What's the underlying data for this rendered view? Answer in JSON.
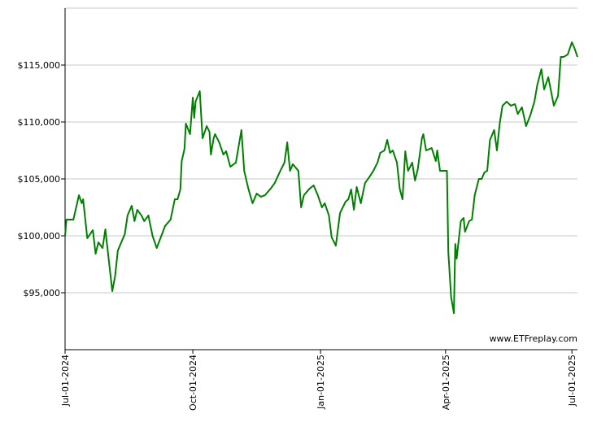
{
  "chart_data": {
    "type": "line",
    "watermark": "www.ETFreplay.com",
    "x": [
      "2024-07-01",
      "2024-07-02",
      "2024-07-07",
      "2024-07-09",
      "2024-07-11",
      "2024-07-13",
      "2024-07-14",
      "2024-07-17",
      "2024-07-21",
      "2024-07-23",
      "2024-07-25",
      "2024-07-28",
      "2024-07-30",
      "2024-08-04",
      "2024-08-06",
      "2024-08-08",
      "2024-08-11",
      "2024-08-13",
      "2024-08-15",
      "2024-08-18",
      "2024-08-20",
      "2024-08-22",
      "2024-08-25",
      "2024-08-27",
      "2024-08-30",
      "2024-09-02",
      "2024-09-05",
      "2024-09-07",
      "2024-09-11",
      "2024-09-15",
      "2024-09-18",
      "2024-09-20",
      "2024-09-22",
      "2024-09-23",
      "2024-09-25",
      "2024-09-26",
      "2024-09-29",
      "2024-10-01",
      "2024-10-02",
      "2024-10-03",
      "2024-10-06",
      "2024-10-08",
      "2024-10-11",
      "2024-10-13",
      "2024-10-14",
      "2024-10-16",
      "2024-10-17",
      "2024-10-20",
      "2024-10-23",
      "2024-10-25",
      "2024-10-28",
      "2024-11-01",
      "2024-11-03",
      "2024-11-05",
      "2024-11-07",
      "2024-11-10",
      "2024-11-13",
      "2024-11-16",
      "2024-11-19",
      "2024-11-22",
      "2024-11-26",
      "2024-11-29",
      "2024-12-03",
      "2024-12-06",
      "2024-12-08",
      "2024-12-10",
      "2024-12-12",
      "2024-12-16",
      "2024-12-18",
      "2024-12-20",
      "2024-12-24",
      "2024-12-27",
      "2024-12-30",
      "2025-01-02",
      "2025-01-04",
      "2025-01-07",
      "2025-01-09",
      "2025-01-12",
      "2025-01-15",
      "2025-01-19",
      "2025-01-21",
      "2025-01-23",
      "2025-01-25",
      "2025-01-27",
      "2025-01-30",
      "2025-02-02",
      "2025-02-05",
      "2025-02-08",
      "2025-02-11",
      "2025-02-13",
      "2025-02-16",
      "2025-02-18",
      "2025-02-20",
      "2025-02-22",
      "2025-02-25",
      "2025-02-27",
      "2025-03-01",
      "2025-03-03",
      "2025-03-05",
      "2025-03-08",
      "2025-03-10",
      "2025-03-12",
      "2025-03-15",
      "2025-03-16",
      "2025-03-18",
      "2025-03-22",
      "2025-03-25",
      "2025-03-26",
      "2025-03-28",
      "2025-03-30",
      "2025-04-02",
      "2025-04-03",
      "2025-04-05",
      "2025-04-07",
      "2025-04-08",
      "2025-04-09",
      "2025-04-12",
      "2025-04-14",
      "2025-04-15",
      "2025-04-18",
      "2025-04-20",
      "2025-04-22",
      "2025-04-25",
      "2025-04-27",
      "2025-04-29",
      "2025-05-01",
      "2025-05-03",
      "2025-05-06",
      "2025-05-08",
      "2025-05-10",
      "2025-05-12",
      "2025-05-15",
      "2025-05-18",
      "2025-05-21",
      "2025-05-23",
      "2025-05-26",
      "2025-05-29",
      "2025-06-01",
      "2025-06-04",
      "2025-06-06",
      "2025-06-09",
      "2025-06-11",
      "2025-06-14",
      "2025-06-18",
      "2025-06-21",
      "2025-06-23",
      "2025-06-25",
      "2025-06-28",
      "2025-07-01",
      "2025-07-03",
      "2025-07-05"
    ],
    "series": [
      {
        "color": "#008000",
        "values": [
          100000,
          101430,
          101430,
          102500,
          103570,
          102860,
          103210,
          99790,
          100500,
          98430,
          99430,
          98930,
          100570,
          95140,
          96430,
          98710,
          99570,
          100140,
          101790,
          102640,
          101290,
          102290,
          101790,
          101290,
          101790,
          100000,
          98930,
          99570,
          100860,
          101430,
          103210,
          103210,
          104070,
          106570,
          107640,
          109860,
          108930,
          112140,
          110360,
          111790,
          112710,
          108570,
          109640,
          109140,
          107140,
          108570,
          108930,
          108210,
          107140,
          107430,
          106070,
          106430,
          107860,
          109290,
          105710,
          104140,
          102860,
          103710,
          103430,
          103570,
          104140,
          104640,
          105710,
          106430,
          108210,
          105710,
          106290,
          105710,
          102500,
          103570,
          104140,
          104430,
          103570,
          102500,
          102860,
          101790,
          99860,
          99140,
          102000,
          103000,
          103210,
          104070,
          102290,
          104290,
          102860,
          104640,
          105140,
          105710,
          106430,
          107290,
          107500,
          108430,
          107290,
          107500,
          106430,
          104140,
          103210,
          107430,
          105710,
          106430,
          104860,
          105860,
          108570,
          108930,
          107500,
          107710,
          106570,
          107500,
          105710,
          105710,
          105710,
          98570,
          94640,
          93210,
          99290,
          98000,
          101290,
          101570,
          100360,
          101290,
          101430,
          103570,
          105000,
          105000,
          105570,
          105710,
          108430,
          109290,
          107500,
          109860,
          111430,
          111790,
          111430,
          111570,
          110710,
          111290,
          109640,
          110570,
          111790,
          113210,
          114640,
          112860,
          113930,
          111430,
          112290,
          115710,
          115710,
          115930,
          117000,
          116430,
          115710
        ]
      }
    ],
    "xlim": [
      "2024-07-01",
      "2025-07-05"
    ],
    "xticks": [
      {
        "value": "2024-07-01",
        "label": "Jul-01-2024"
      },
      {
        "value": "2024-10-01",
        "label": "Oct-01-2024"
      },
      {
        "value": "2025-01-01",
        "label": "Jan-01-2025"
      },
      {
        "value": "2025-04-01",
        "label": "Apr-01-2025"
      },
      {
        "value": "2025-07-01",
        "label": "Jul-01-2025"
      }
    ],
    "ylim": [
      90000,
      120000
    ],
    "yticks": [
      {
        "value": 95000,
        "label": "$95,000"
      },
      {
        "value": 100000,
        "label": "$100,000"
      },
      {
        "value": 105000,
        "label": "$105,000"
      },
      {
        "value": 110000,
        "label": "$110,000"
      },
      {
        "value": 115000,
        "label": "$115,000"
      }
    ],
    "grid": true
  }
}
